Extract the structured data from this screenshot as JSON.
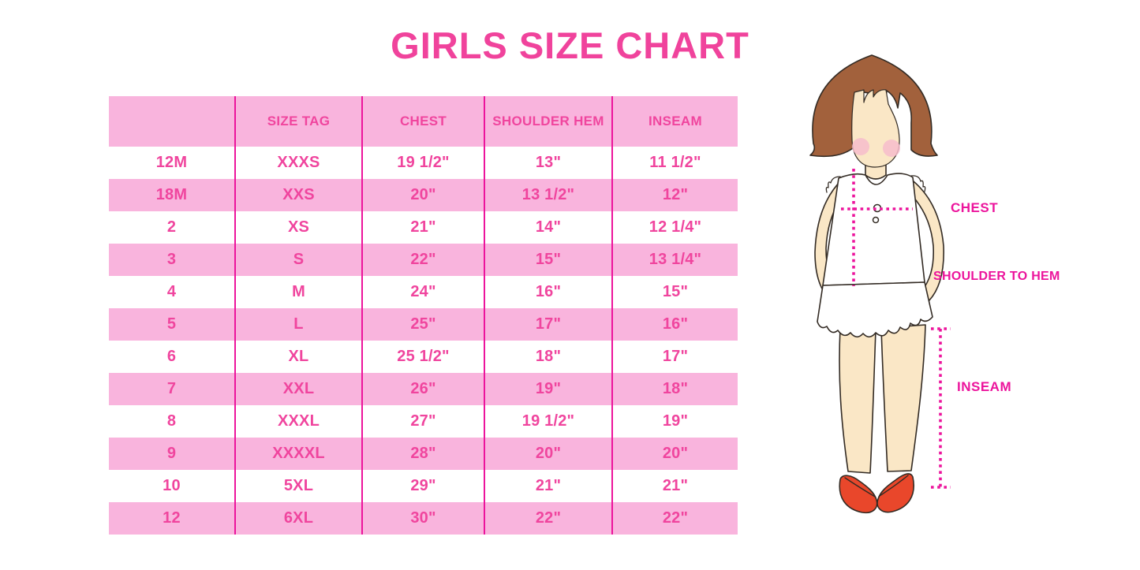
{
  "chart_data": {
    "type": "table",
    "title": "GIRLS SIZE CHART",
    "columns": [
      "",
      "SIZE TAG",
      "CHEST",
      "SHOULDER HEM",
      "INSEAM"
    ],
    "rows": [
      [
        "12M",
        "XXXS",
        "19 1/2\"",
        "13\"",
        "11 1/2\""
      ],
      [
        "18M",
        "XXS",
        "20\"",
        "13 1/2\"",
        "12\""
      ],
      [
        "2",
        "XS",
        "21\"",
        "14\"",
        "12 1/4\""
      ],
      [
        "3",
        "S",
        "22\"",
        "15\"",
        "13 1/4\""
      ],
      [
        "4",
        "M",
        "24\"",
        "16\"",
        "15\""
      ],
      [
        "5",
        "L",
        "25\"",
        "17\"",
        "16\""
      ],
      [
        "6",
        "XL",
        "25 1/2\"",
        "18\"",
        "17\""
      ],
      [
        "7",
        "XXL",
        "26\"",
        "19\"",
        "18\""
      ],
      [
        "8",
        "XXXL",
        "27\"",
        "19 1/2\"",
        "19\""
      ],
      [
        "9",
        "XXXXL",
        "28\"",
        "20\"",
        "20\""
      ],
      [
        "10",
        "5XL",
        "29\"",
        "21\"",
        "21\""
      ],
      [
        "12",
        "6XL",
        "30\"",
        "22\"",
        "22\""
      ]
    ],
    "layout": {
      "header_row_fill": "pink",
      "data_row_striping": [
        "white",
        "pink"
      ],
      "grid": "vertical-dividers-only"
    }
  },
  "diagram": {
    "labels": {
      "chest": "CHEST",
      "shoulder_to_hem": "SHOULDER TO HEM",
      "inseam": "INSEAM"
    }
  },
  "colors": {
    "accent": "#F0439C",
    "band": "#F9B4DD",
    "line": "#EC149C",
    "celltext": "#F0459E",
    "hair": "#A2613C",
    "skin": "#FAE7C6",
    "shoe": "#E9472B"
  }
}
